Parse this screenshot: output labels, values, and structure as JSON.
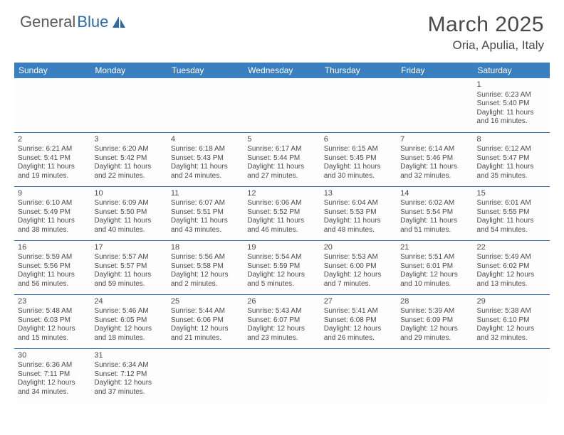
{
  "brand": {
    "part1": "General",
    "part2": "Blue"
  },
  "title": "March 2025",
  "location": "Oria, Apulia, Italy",
  "colors": {
    "header_bg": "#3a7fbf",
    "header_text": "#ffffff",
    "border": "#2d6aa8",
    "text": "#4a4a4a",
    "brand_gray": "#5a5a5a",
    "brand_blue": "#2d6aa8",
    "page_bg": "#ffffff"
  },
  "day_headers": [
    "Sunday",
    "Monday",
    "Tuesday",
    "Wednesday",
    "Thursday",
    "Friday",
    "Saturday"
  ],
  "weeks": [
    [
      null,
      null,
      null,
      null,
      null,
      null,
      {
        "d": "1",
        "r": "6:23 AM",
        "s": "5:40 PM",
        "dl": "11 hours and 16 minutes."
      }
    ],
    [
      {
        "d": "2",
        "r": "6:21 AM",
        "s": "5:41 PM",
        "dl": "11 hours and 19 minutes."
      },
      {
        "d": "3",
        "r": "6:20 AM",
        "s": "5:42 PM",
        "dl": "11 hours and 22 minutes."
      },
      {
        "d": "4",
        "r": "6:18 AM",
        "s": "5:43 PM",
        "dl": "11 hours and 24 minutes."
      },
      {
        "d": "5",
        "r": "6:17 AM",
        "s": "5:44 PM",
        "dl": "11 hours and 27 minutes."
      },
      {
        "d": "6",
        "r": "6:15 AM",
        "s": "5:45 PM",
        "dl": "11 hours and 30 minutes."
      },
      {
        "d": "7",
        "r": "6:14 AM",
        "s": "5:46 PM",
        "dl": "11 hours and 32 minutes."
      },
      {
        "d": "8",
        "r": "6:12 AM",
        "s": "5:47 PM",
        "dl": "11 hours and 35 minutes."
      }
    ],
    [
      {
        "d": "9",
        "r": "6:10 AM",
        "s": "5:49 PM",
        "dl": "11 hours and 38 minutes."
      },
      {
        "d": "10",
        "r": "6:09 AM",
        "s": "5:50 PM",
        "dl": "11 hours and 40 minutes."
      },
      {
        "d": "11",
        "r": "6:07 AM",
        "s": "5:51 PM",
        "dl": "11 hours and 43 minutes."
      },
      {
        "d": "12",
        "r": "6:06 AM",
        "s": "5:52 PM",
        "dl": "11 hours and 46 minutes."
      },
      {
        "d": "13",
        "r": "6:04 AM",
        "s": "5:53 PM",
        "dl": "11 hours and 48 minutes."
      },
      {
        "d": "14",
        "r": "6:02 AM",
        "s": "5:54 PM",
        "dl": "11 hours and 51 minutes."
      },
      {
        "d": "15",
        "r": "6:01 AM",
        "s": "5:55 PM",
        "dl": "11 hours and 54 minutes."
      }
    ],
    [
      {
        "d": "16",
        "r": "5:59 AM",
        "s": "5:56 PM",
        "dl": "11 hours and 56 minutes."
      },
      {
        "d": "17",
        "r": "5:57 AM",
        "s": "5:57 PM",
        "dl": "11 hours and 59 minutes."
      },
      {
        "d": "18",
        "r": "5:56 AM",
        "s": "5:58 PM",
        "dl": "12 hours and 2 minutes."
      },
      {
        "d": "19",
        "r": "5:54 AM",
        "s": "5:59 PM",
        "dl": "12 hours and 5 minutes."
      },
      {
        "d": "20",
        "r": "5:53 AM",
        "s": "6:00 PM",
        "dl": "12 hours and 7 minutes."
      },
      {
        "d": "21",
        "r": "5:51 AM",
        "s": "6:01 PM",
        "dl": "12 hours and 10 minutes."
      },
      {
        "d": "22",
        "r": "5:49 AM",
        "s": "6:02 PM",
        "dl": "12 hours and 13 minutes."
      }
    ],
    [
      {
        "d": "23",
        "r": "5:48 AM",
        "s": "6:03 PM",
        "dl": "12 hours and 15 minutes."
      },
      {
        "d": "24",
        "r": "5:46 AM",
        "s": "6:05 PM",
        "dl": "12 hours and 18 minutes."
      },
      {
        "d": "25",
        "r": "5:44 AM",
        "s": "6:06 PM",
        "dl": "12 hours and 21 minutes."
      },
      {
        "d": "26",
        "r": "5:43 AM",
        "s": "6:07 PM",
        "dl": "12 hours and 23 minutes."
      },
      {
        "d": "27",
        "r": "5:41 AM",
        "s": "6:08 PM",
        "dl": "12 hours and 26 minutes."
      },
      {
        "d": "28",
        "r": "5:39 AM",
        "s": "6:09 PM",
        "dl": "12 hours and 29 minutes."
      },
      {
        "d": "29",
        "r": "5:38 AM",
        "s": "6:10 PM",
        "dl": "12 hours and 32 minutes."
      }
    ],
    [
      {
        "d": "30",
        "r": "6:36 AM",
        "s": "7:11 PM",
        "dl": "12 hours and 34 minutes."
      },
      {
        "d": "31",
        "r": "6:34 AM",
        "s": "7:12 PM",
        "dl": "12 hours and 37 minutes."
      },
      null,
      null,
      null,
      null,
      null
    ]
  ],
  "labels": {
    "sunrise": "Sunrise:",
    "sunset": "Sunset:",
    "daylight": "Daylight:"
  }
}
